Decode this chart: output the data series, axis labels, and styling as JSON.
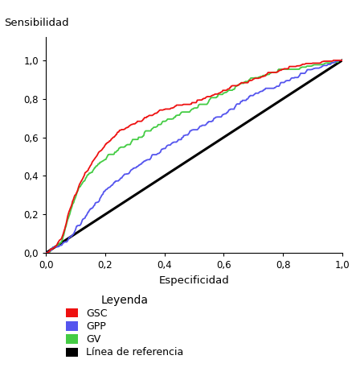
{
  "xlabel": "Especificidad",
  "ylabel": "Sensibilidad",
  "legend_title": "Leyenda",
  "legend_entries": [
    "GSC",
    "GPP",
    "GV",
    "Línea de referencia"
  ],
  "colors": {
    "GSC": "#ee1111",
    "GPP": "#5555ee",
    "GV": "#44cc44",
    "ref": "#000000"
  },
  "xlim": [
    0.0,
    1.0
  ],
  "ylim": [
    0.0,
    1.12
  ],
  "xticks": [
    0.0,
    0.2,
    0.4,
    0.6,
    0.8,
    1.0
  ],
  "yticks": [
    0.0,
    0.2,
    0.4,
    0.6,
    0.8,
    1.0
  ],
  "tick_labels": [
    "0,0",
    "0,2",
    "0,4",
    "0,6",
    "0,8",
    "1,0"
  ],
  "figsize": [
    4.39,
    4.62
  ],
  "dpi": 100
}
